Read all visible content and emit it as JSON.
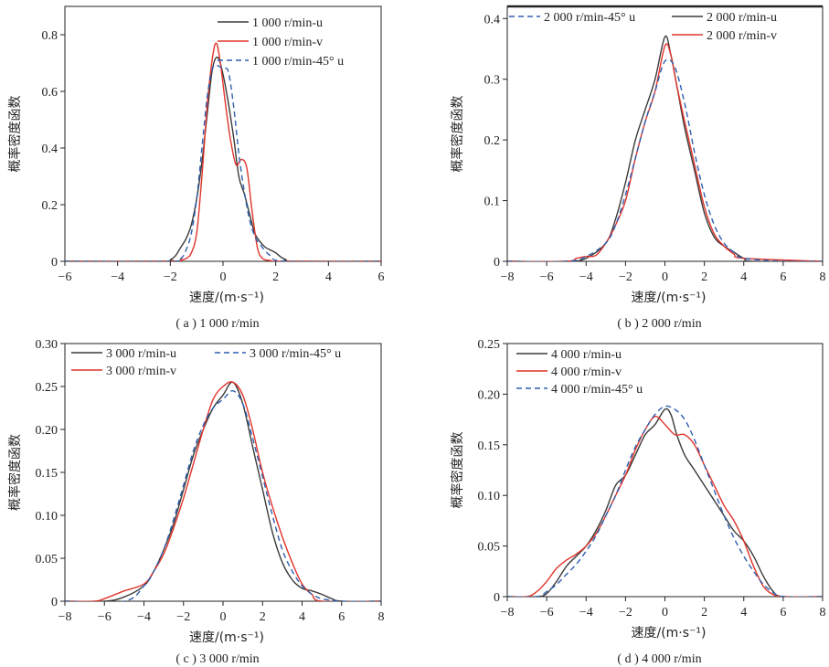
{
  "colors": {
    "u": "#3a3a3a",
    "v": "#e0342b",
    "w": "#2e5fb0"
  },
  "chart_data": [
    {
      "type": "line",
      "caption": "( a ) 1 000 r/min",
      "xlabel": "速度/(m·s⁻¹)",
      "ylabel": "概率密度函数",
      "xlim": [
        -6,
        6
      ],
      "ylim": [
        0,
        0.9
      ],
      "xticks": [
        -6,
        -4,
        -2,
        0,
        2,
        4,
        6
      ],
      "yticks": [
        0,
        0.2,
        0.4,
        0.6,
        0.8
      ],
      "ytick_labels": [
        "0",
        "0.2",
        "0.4",
        "0.6",
        "0.8"
      ],
      "legend": "top-right",
      "series": [
        {
          "name": "1 000 r/min-u",
          "style": "u",
          "x": [
            -6,
            -2.2,
            -2,
            -1.8,
            -1.6,
            -1.4,
            -1.2,
            -1,
            -0.8,
            -0.6,
            -0.4,
            -0.2,
            0,
            0.2,
            0.4,
            0.6,
            0.8,
            1,
            1.2,
            1.4,
            1.6,
            1.8,
            2,
            2.2,
            2.4,
            2.6,
            6
          ],
          "y": [
            0,
            0,
            0.005,
            0.02,
            0.05,
            0.08,
            0.13,
            0.22,
            0.35,
            0.52,
            0.68,
            0.72,
            0.66,
            0.56,
            0.44,
            0.3,
            0.24,
            0.17,
            0.1,
            0.07,
            0.05,
            0.04,
            0.03,
            0.015,
            0.005,
            0,
            0
          ]
        },
        {
          "name": "1 000 r/min-v",
          "style": "v",
          "x": [
            -6,
            -2,
            -1.6,
            -1.4,
            -1.2,
            -1,
            -0.8,
            -0.6,
            -0.4,
            -0.25,
            -0.1,
            0.1,
            0.3,
            0.5,
            0.7,
            0.9,
            1.1,
            1.3,
            1.5,
            1.8,
            2.2,
            6
          ],
          "y": [
            0,
            0,
            0.005,
            0.01,
            0.03,
            0.1,
            0.3,
            0.55,
            0.72,
            0.77,
            0.7,
            0.55,
            0.42,
            0.34,
            0.36,
            0.33,
            0.18,
            0.05,
            0.01,
            0.003,
            0,
            0
          ]
        },
        {
          "name": "1 000 r/min-45° u",
          "style": "w",
          "x": [
            -6,
            -2,
            -1.6,
            -1.4,
            -1.2,
            -1,
            -0.8,
            -0.6,
            -0.4,
            -0.2,
            0,
            0.2,
            0.4,
            0.6,
            0.8,
            1,
            1.2,
            1.4,
            1.8,
            2.4,
            6
          ],
          "y": [
            0,
            0,
            0.01,
            0.04,
            0.1,
            0.22,
            0.4,
            0.58,
            0.68,
            0.69,
            0.68,
            0.67,
            0.55,
            0.38,
            0.25,
            0.15,
            0.09,
            0.06,
            0.02,
            0,
            0
          ]
        }
      ]
    },
    {
      "type": "line",
      "caption": "( b ) 2 000 r/min",
      "xlabel": "速度/(m·s⁻¹)",
      "ylabel": "概率密度函数",
      "xlim": [
        -8,
        8
      ],
      "ylim": [
        0,
        0.42
      ],
      "xticks": [
        -8,
        -6,
        -4,
        -2,
        0,
        2,
        4,
        6,
        8
      ],
      "yticks": [
        0,
        0.1,
        0.2,
        0.3,
        0.4
      ],
      "ytick_labels": [
        "0",
        "0.1",
        "0.2",
        "0.3",
        "0.4"
      ],
      "legend": "top",
      "series": [
        {
          "name": "2 000 r/min-u",
          "style": "u",
          "x": [
            -8,
            -5,
            -4,
            -3,
            -2.5,
            -2,
            -1.5,
            -1,
            -0.5,
            0,
            0.3,
            0.6,
            1,
            1.5,
            2,
            2.5,
            3,
            3.5,
            4,
            4.5,
            8
          ],
          "y": [
            0,
            0,
            0.005,
            0.03,
            0.07,
            0.13,
            0.2,
            0.25,
            0.3,
            0.37,
            0.34,
            0.29,
            0.22,
            0.15,
            0.08,
            0.04,
            0.025,
            0.015,
            0.005,
            0,
            0
          ]
        },
        {
          "name": "2 000 r/min-v",
          "style": "v",
          "x": [
            -8,
            -5,
            -4.5,
            -4,
            -3.5,
            -3,
            -2.5,
            -2,
            -1.5,
            -1,
            -0.5,
            0,
            0.3,
            0.6,
            1,
            1.5,
            2,
            2.5,
            3,
            3.5,
            4,
            8
          ],
          "y": [
            0,
            0,
            0.005,
            0.008,
            0.01,
            0.03,
            0.06,
            0.1,
            0.17,
            0.23,
            0.28,
            0.355,
            0.34,
            0.29,
            0.23,
            0.16,
            0.09,
            0.045,
            0.025,
            0.012,
            0.005,
            0
          ]
        },
        {
          "name": "2 000 r/min-45° u",
          "style": "w",
          "x": [
            -8,
            -5,
            -4,
            -3,
            -2.5,
            -2,
            -1.5,
            -1,
            -0.5,
            0,
            0.5,
            1,
            1.5,
            2,
            2.5,
            3,
            3.5,
            4,
            6,
            8
          ],
          "y": [
            0,
            0,
            0.008,
            0.03,
            0.06,
            0.11,
            0.17,
            0.23,
            0.28,
            0.33,
            0.32,
            0.26,
            0.18,
            0.11,
            0.06,
            0.03,
            0.015,
            0.005,
            0,
            0
          ]
        }
      ]
    },
    {
      "type": "line",
      "caption": "( c ) 3 000 r/min",
      "xlabel": "速度/(m·s⁻¹)",
      "ylabel": "概率密度函数",
      "xlim": [
        -8,
        8
      ],
      "ylim": [
        0,
        0.3
      ],
      "xticks": [
        -8,
        -6,
        -4,
        -2,
        0,
        2,
        4,
        6,
        8
      ],
      "yticks": [
        0,
        0.05,
        0.1,
        0.15,
        0.2,
        0.25,
        0.3
      ],
      "ytick_labels": [
        "0",
        "0.05",
        "0.10",
        "0.15",
        "0.20",
        "0.25",
        "0.30"
      ],
      "legend": "top",
      "series": [
        {
          "name": "3 000 r/min-u",
          "style": "u",
          "x": [
            -8,
            -6,
            -5,
            -4,
            -3.5,
            -3,
            -2.5,
            -2,
            -1.5,
            -1,
            -0.5,
            0,
            0.5,
            1,
            1.5,
            2,
            2.5,
            3,
            3.5,
            4,
            4.5,
            5,
            5.5,
            6,
            8
          ],
          "y": [
            0,
            0,
            0.005,
            0.018,
            0.035,
            0.06,
            0.09,
            0.13,
            0.17,
            0.2,
            0.225,
            0.24,
            0.255,
            0.23,
            0.18,
            0.13,
            0.08,
            0.045,
            0.025,
            0.015,
            0.012,
            0.008,
            0.003,
            0,
            0
          ]
        },
        {
          "name": "3 000 r/min-v",
          "style": "v",
          "x": [
            -8,
            -6.5,
            -6,
            -5,
            -4,
            -3.5,
            -3,
            -2.5,
            -2,
            -1.5,
            -1,
            -0.5,
            0,
            0.5,
            1,
            1.5,
            2,
            2.5,
            3,
            3.5,
            4,
            4.5,
            5,
            8
          ],
          "y": [
            0,
            0,
            0.003,
            0.012,
            0.02,
            0.035,
            0.055,
            0.085,
            0.12,
            0.16,
            0.2,
            0.235,
            0.25,
            0.255,
            0.24,
            0.2,
            0.15,
            0.11,
            0.075,
            0.045,
            0.02,
            0.008,
            0,
            0
          ]
        },
        {
          "name": "3 000 r/min-45° u",
          "style": "w",
          "x": [
            -8,
            -5,
            -4,
            -3.5,
            -3,
            -2.5,
            -2,
            -1.5,
            -1,
            -0.5,
            0,
            0.5,
            1,
            1.5,
            2,
            2.5,
            3,
            3.5,
            4,
            4.5,
            5,
            6,
            8
          ],
          "y": [
            0,
            0,
            0.018,
            0.035,
            0.06,
            0.095,
            0.135,
            0.175,
            0.205,
            0.225,
            0.235,
            0.245,
            0.23,
            0.19,
            0.145,
            0.1,
            0.06,
            0.035,
            0.018,
            0.008,
            0.003,
            0,
            0
          ]
        }
      ]
    },
    {
      "type": "line",
      "caption": "( d ) 4 000 r/min",
      "xlabel": "速度/(m·s⁻¹)",
      "ylabel": "概率密度函数",
      "xlim": [
        -8,
        8
      ],
      "ylim": [
        0,
        0.25
      ],
      "xticks": [
        -8,
        -6,
        -4,
        -2,
        0,
        2,
        4,
        6,
        8
      ],
      "yticks": [
        0,
        0.05,
        0.1,
        0.15,
        0.2,
        0.25
      ],
      "ytick_labels": [
        "0",
        "0.05",
        "0.10",
        "0.15",
        "0.20",
        "0.25"
      ],
      "legend": "top-left",
      "series": [
        {
          "name": "4 000 r/min-u",
          "style": "u",
          "x": [
            -8,
            -6.5,
            -6,
            -5.5,
            -5,
            -4.5,
            -4,
            -3.5,
            -3,
            -2.5,
            -2,
            -1.5,
            -1,
            -0.5,
            0,
            0.3,
            0.6,
            1,
            1.5,
            2,
            2.5,
            3,
            3.5,
            4,
            4.5,
            5,
            5.5,
            6,
            8
          ],
          "y": [
            0,
            0,
            0.003,
            0.015,
            0.03,
            0.04,
            0.05,
            0.065,
            0.085,
            0.11,
            0.12,
            0.14,
            0.16,
            0.17,
            0.185,
            0.18,
            0.16,
            0.14,
            0.125,
            0.11,
            0.095,
            0.08,
            0.065,
            0.055,
            0.04,
            0.02,
            0.005,
            0,
            0
          ]
        },
        {
          "name": "4 000 r/min-v",
          "style": "v",
          "x": [
            -8,
            -7,
            -6.5,
            -6,
            -5.5,
            -5,
            -4.5,
            -4,
            -3.5,
            -3,
            -2.5,
            -2,
            -1.5,
            -1,
            -0.5,
            0,
            0.5,
            1,
            1.5,
            2,
            2.5,
            3,
            3.5,
            4,
            4.5,
            5,
            5.5,
            6,
            8
          ],
          "y": [
            0,
            0,
            0.005,
            0.015,
            0.028,
            0.036,
            0.042,
            0.05,
            0.062,
            0.08,
            0.1,
            0.12,
            0.145,
            0.165,
            0.178,
            0.17,
            0.16,
            0.16,
            0.15,
            0.13,
            0.11,
            0.09,
            0.075,
            0.055,
            0.03,
            0.01,
            0.002,
            0,
            0
          ]
        },
        {
          "name": "4 000 r/min-45° u",
          "style": "w",
          "x": [
            -8,
            -6.5,
            -6,
            -5.5,
            -5,
            -4.5,
            -4,
            -3.5,
            -3,
            -2.5,
            -2,
            -1.5,
            -1,
            -0.5,
            0,
            0.5,
            1,
            1.5,
            2,
            2.5,
            3,
            3.5,
            4,
            4.5,
            5,
            5.5,
            6,
            8
          ],
          "y": [
            0,
            0,
            0.005,
            0.012,
            0.022,
            0.032,
            0.045,
            0.06,
            0.08,
            0.1,
            0.125,
            0.148,
            0.165,
            0.18,
            0.188,
            0.185,
            0.175,
            0.155,
            0.13,
            0.105,
            0.08,
            0.058,
            0.04,
            0.025,
            0.012,
            0.004,
            0,
            0
          ]
        }
      ]
    }
  ]
}
